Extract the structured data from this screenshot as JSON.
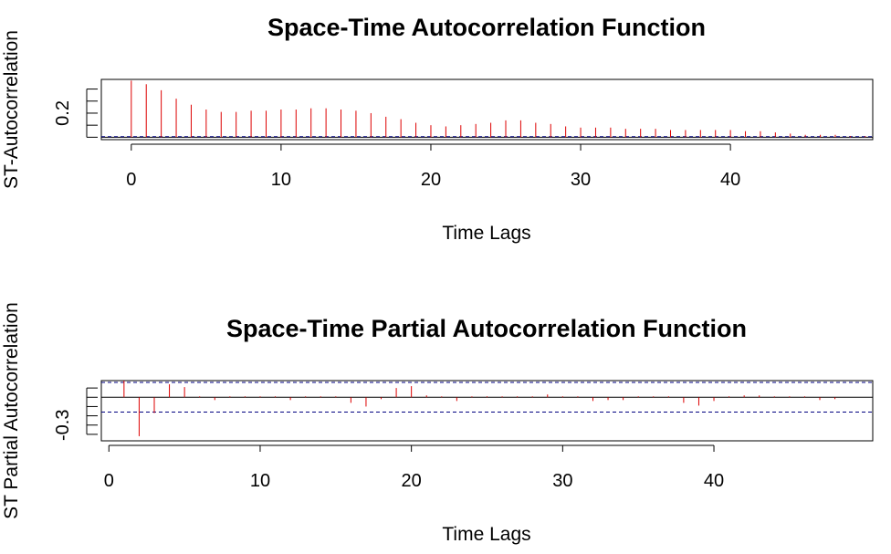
{
  "chart_data": [
    {
      "type": "bar",
      "subtype": "acf",
      "title": "Space-Time Autocorrelation Function",
      "xlabel": "Time Lags",
      "ylabel": "ST-Autocorrelation",
      "xlim": [
        -2,
        49.5
      ],
      "ylim": [
        -0.02,
        0.48
      ],
      "x_ticks": [
        0,
        10,
        20,
        30,
        40
      ],
      "y_ticks": [
        0,
        0.1,
        0.2,
        0.3,
        0.4
      ],
      "y_tick_labels": [
        {
          "value": 0.2,
          "label": "0.2"
        }
      ],
      "line_color": "#dd0000",
      "reference_color": "#000080",
      "confidence_limit": 0.005,
      "x": [
        0,
        1,
        2,
        3,
        4,
        5,
        6,
        7,
        8,
        9,
        10,
        11,
        12,
        13,
        14,
        15,
        16,
        17,
        18,
        19,
        20,
        21,
        22,
        23,
        24,
        25,
        26,
        27,
        28,
        29,
        30,
        31,
        32,
        33,
        34,
        35,
        36,
        37,
        38,
        39,
        40,
        41,
        42,
        43,
        44,
        45,
        46,
        47,
        48,
        49
      ],
      "values": [
        0.47,
        0.44,
        0.39,
        0.32,
        0.27,
        0.23,
        0.21,
        0.21,
        0.22,
        0.22,
        0.23,
        0.23,
        0.24,
        0.24,
        0.23,
        0.22,
        0.2,
        0.17,
        0.15,
        0.12,
        0.1,
        0.09,
        0.1,
        0.11,
        0.12,
        0.14,
        0.14,
        0.12,
        0.11,
        0.09,
        0.08,
        0.08,
        0.08,
        0.07,
        0.07,
        0.07,
        0.06,
        0.06,
        0.06,
        0.06,
        0.06,
        0.05,
        0.05,
        0.04,
        0.03,
        0.02,
        0.02,
        0.02,
        0.01,
        0.01
      ]
    },
    {
      "type": "bar",
      "subtype": "pacf",
      "title": "Space-Time Partial Autocorrelation Function",
      "xlabel": "Time Lags",
      "ylabel": "ST Partial Autocorrelation",
      "xlim": [
        -0.5,
        50.5
      ],
      "ylim": [
        -0.47,
        0.18
      ],
      "x_ticks": [
        0,
        10,
        20,
        30,
        40
      ],
      "y_ticks": [
        -0.4,
        -0.3,
        -0.2,
        -0.1,
        0,
        0.1
      ],
      "y_tick_labels": [
        {
          "value": -0.3,
          "label": "-0.3"
        }
      ],
      "line_color": "#dd0000",
      "reference_color": "#000080",
      "confidence_limit": 0.16,
      "x": [
        1,
        2,
        3,
        4,
        5,
        6,
        7,
        8,
        9,
        10,
        11,
        12,
        13,
        14,
        15,
        16,
        17,
        18,
        19,
        20,
        21,
        22,
        23,
        24,
        25,
        26,
        27,
        28,
        29,
        30,
        31,
        32,
        33,
        34,
        35,
        36,
        37,
        38,
        39,
        40,
        41,
        42,
        43,
        44,
        45,
        46,
        47,
        48
      ],
      "values": [
        0.18,
        -0.42,
        -0.17,
        0.14,
        0.11,
        0.01,
        -0.03,
        0.01,
        0.01,
        0.01,
        0.01,
        -0.03,
        0.01,
        0.01,
        0.01,
        -0.06,
        -0.1,
        -0.02,
        0.1,
        0.12,
        0.02,
        0.01,
        -0.04,
        0.01,
        0.01,
        0.01,
        0.01,
        0.01,
        0.03,
        0.01,
        0.01,
        -0.04,
        -0.03,
        -0.03,
        0.01,
        0.01,
        0.01,
        -0.06,
        -0.09,
        -0.04,
        0.01,
        0.02,
        0.02,
        0.01,
        0.01,
        0.01,
        -0.03,
        -0.02
      ]
    }
  ]
}
